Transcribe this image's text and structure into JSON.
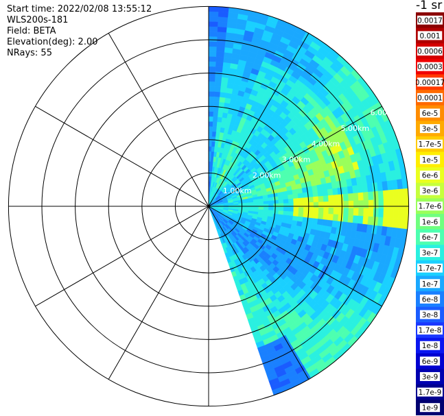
{
  "info": {
    "start_time": "Start time: 2022/02/08 13:55:12",
    "instrument": "WLS200s-181",
    "field": "Field: BETA",
    "elevation": "Elevation(deg): 2.00",
    "nrays": "NRays: 55"
  },
  "colorbar": {
    "unit": "-1 sr",
    "labels": [
      "0.0017",
      "0.001",
      "0.0006",
      "0.0003",
      "0.00017",
      "0.0001",
      "6e-5",
      "3e-5",
      "1.7e-5",
      "1e-5",
      "6e-6",
      "3e-6",
      "1.7e-6",
      "1e-6",
      "6e-7",
      "3e-7",
      "1.7e-7",
      "1e-7",
      "6e-8",
      "3e-8",
      "1.7e-8",
      "1e-8",
      "6e-9",
      "3e-9",
      "1.7e-9",
      "1e-9"
    ],
    "colors": [
      "#8b0000",
      "#b00000",
      "#d40000",
      "#f00000",
      "#ff3a00",
      "#ff6a00",
      "#ff8c00",
      "#ffaa00",
      "#ffcc00",
      "#ffee00",
      "#eaff1f",
      "#c6ff3c",
      "#9aff5a",
      "#70ff7f",
      "#4dffb0",
      "#2af0e0",
      "#1ad0ff",
      "#1aa8ff",
      "#1a80ff",
      "#1a5cff",
      "#1a38ff",
      "#0a16f0",
      "#0000d0",
      "#0000b0",
      "#000090",
      "#000070"
    ]
  },
  "chart_data": {
    "type": "heatmap",
    "projection": "polar-ppi",
    "azimuth_start_deg": 0,
    "azimuth_end_deg": 161,
    "n_rays": 55,
    "max_range_km": 6.0,
    "range_rings_km": [
      "1.00km",
      "2.00km",
      "3.00km",
      "4.00km",
      "5.00km",
      "6.00km"
    ],
    "range_rings": [
      1,
      2,
      3,
      4,
      5,
      6
    ],
    "spoke_azimuths_deg": [
      0,
      30,
      60,
      90,
      120,
      150,
      180,
      210,
      240,
      270,
      300,
      330
    ],
    "value_field": "BETA",
    "value_unit": "-1 sr",
    "color_levels": [
      "0.0017",
      "0.001",
      "0.0006",
      "0.0003",
      "0.00017",
      "0.0001",
      "6e-5",
      "3e-5",
      "1.7e-5",
      "1e-5",
      "6e-6",
      "3e-6",
      "1.7e-6",
      "1e-6",
      "6e-7",
      "3e-7",
      "1.7e-7",
      "1e-7",
      "6e-8",
      "3e-8",
      "1.7e-8",
      "1e-8",
      "6e-9",
      "3e-9",
      "1.7e-9",
      "1e-9"
    ]
  }
}
